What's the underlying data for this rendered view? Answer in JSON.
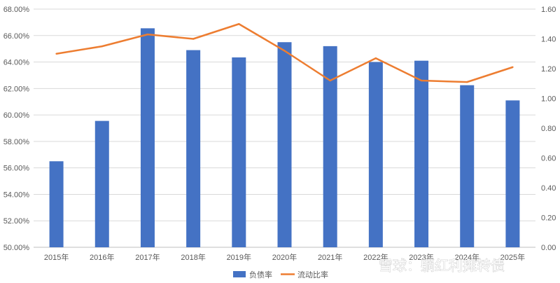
{
  "chart_data": {
    "type": "bar",
    "categories": [
      "2015年",
      "2016年",
      "2017年",
      "2018年",
      "2019年",
      "2020年",
      "2021年",
      "2022年",
      "2023年",
      "2024年",
      "2025年"
    ],
    "series": [
      {
        "name": "负债率",
        "type": "bar",
        "axis": "left",
        "color": "#4472C4",
        "values": [
          56.5,
          59.55,
          66.55,
          64.9,
          64.35,
          65.5,
          65.2,
          64.0,
          64.1,
          62.25,
          61.1
        ]
      },
      {
        "name": "流动比率",
        "type": "line",
        "axis": "right",
        "color": "#ED7D31",
        "values": [
          1.3,
          1.35,
          1.43,
          1.4,
          1.5,
          1.32,
          1.12,
          1.27,
          1.12,
          1.11,
          1.21
        ]
      }
    ],
    "left_axis": {
      "min": 50,
      "max": 68,
      "step": 2,
      "ticks": [
        "50.00%",
        "52.00%",
        "54.00%",
        "56.00%",
        "58.00%",
        "60.00%",
        "62.00%",
        "64.00%",
        "66.00%",
        "68.00%"
      ]
    },
    "right_axis": {
      "min": 0,
      "max": 1.6,
      "step": 0.2,
      "ticks": [
        "0.00",
        "0.20",
        "0.40",
        "0.60",
        "0.80",
        "1.00",
        "1.20",
        "1.40",
        "1.60"
      ]
    },
    "grid": true,
    "legend_position": "bottom"
  },
  "watermark": "雪球：躺红利摊转债"
}
